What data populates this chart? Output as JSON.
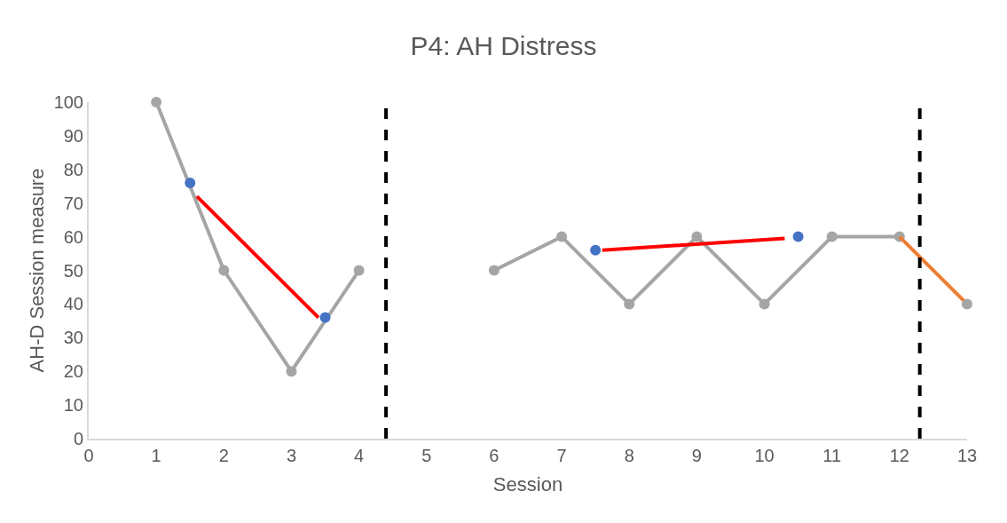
{
  "chart_data": {
    "type": "line",
    "title": "P4: AH Distress",
    "xlabel": "Session",
    "ylabel": "AH-D Session measure",
    "x": [
      1,
      2,
      3,
      4,
      5,
      6,
      7,
      8,
      9,
      10,
      11,
      12
    ],
    "series": [
      {
        "color": "#a5a5a5",
        "values": [
          100,
          50,
          20,
          50,
          null,
          50,
          60,
          40,
          60,
          40,
          60,
          60
        ],
        "marker": "circle"
      },
      {
        "type": "line",
        "color": "#ed7d31",
        "x": [
          12,
          13
        ],
        "values": [
          60,
          40
        ],
        "marker": "none"
      },
      {
        "type": "scatter",
        "color": "#a5a5a5",
        "x": [
          13
        ],
        "values": [
          40
        ],
        "marker": "circle"
      },
      {
        "type": "line",
        "color": "#ff0000",
        "x": [
          1.6,
          3.4
        ],
        "values": [
          72,
          36
        ],
        "marker": "none"
      },
      {
        "type": "line",
        "color": "#ff0000",
        "x": [
          7.6,
          10.3
        ],
        "values": [
          56,
          59.5
        ],
        "marker": "none"
      },
      {
        "type": "scatter",
        "color": "#4472c4",
        "x": [
          1.5,
          3.5,
          7.5,
          10.5
        ],
        "values": [
          76,
          36,
          56,
          60
        ],
        "marker": "circle"
      }
    ],
    "ref_lines": [
      {
        "axis": "x",
        "value": 4.4,
        "color": "#000000",
        "line_style": "dashed"
      },
      {
        "axis": "x",
        "value": 12.3,
        "color": "#000000",
        "line_style": "dashed"
      }
    ],
    "xlim": [
      0,
      13
    ],
    "xticks": [
      0,
      1,
      2,
      3,
      4,
      5,
      6,
      7,
      8,
      9,
      10,
      11,
      12,
      13
    ],
    "ylim": [
      0,
      100
    ],
    "yticks": [
      0,
      10,
      20,
      30,
      40,
      50,
      60,
      70,
      80,
      90,
      100
    ],
    "tick_labels": true
  }
}
